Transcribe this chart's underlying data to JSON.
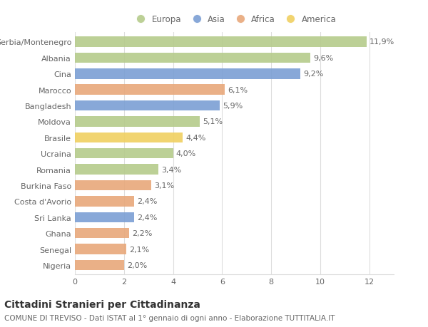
{
  "categories": [
    "Serbia/Montenegro",
    "Albania",
    "Cina",
    "Marocco",
    "Bangladesh",
    "Moldova",
    "Brasile",
    "Ucraina",
    "Romania",
    "Burkina Faso",
    "Costa d'Avorio",
    "Sri Lanka",
    "Ghana",
    "Senegal",
    "Nigeria"
  ],
  "values": [
    11.9,
    9.6,
    9.2,
    6.1,
    5.9,
    5.1,
    4.4,
    4.0,
    3.4,
    3.1,
    2.4,
    2.4,
    2.2,
    2.1,
    2.0
  ],
  "labels": [
    "11,9%",
    "9,6%",
    "9,2%",
    "6,1%",
    "5,9%",
    "5,1%",
    "4,4%",
    "4,0%",
    "3,4%",
    "3,1%",
    "2,4%",
    "2,4%",
    "2,2%",
    "2,1%",
    "2,0%"
  ],
  "continents": [
    "Europa",
    "Europa",
    "Asia",
    "Africa",
    "Asia",
    "Europa",
    "America",
    "Europa",
    "Europa",
    "Africa",
    "Africa",
    "Asia",
    "Africa",
    "Africa",
    "Africa"
  ],
  "colors": {
    "Europa": "#b5cb8b",
    "Asia": "#7b9fd4",
    "Africa": "#e8a87a",
    "America": "#f0d060"
  },
  "xlim": [
    0,
    13
  ],
  "xticks": [
    0,
    2,
    4,
    6,
    8,
    10,
    12
  ],
  "title1": "Cittadini Stranieri per Cittadinanza",
  "title2": "COMUNE DI TREVISO - Dati ISTAT al 1° gennaio di ogni anno - Elaborazione TUTTITALIA.IT",
  "background_color": "#ffffff",
  "grid_color": "#dddddd",
  "bar_height": 0.65,
  "label_fontsize": 8,
  "tick_fontsize": 8,
  "title1_fontsize": 10,
  "title2_fontsize": 7.5,
  "legend_order": [
    "Europa",
    "Asia",
    "Africa",
    "America"
  ]
}
